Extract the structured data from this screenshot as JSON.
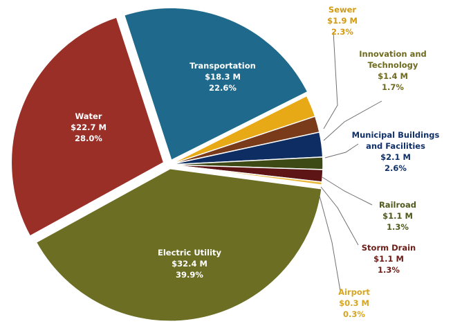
{
  "chart_data": {
    "type": "pie",
    "slices": [
      {
        "name": "Transportation",
        "value_label": "$18.3 M",
        "value": 18.3,
        "pct_label": "22.6%",
        "pct": 22.6,
        "color": "#1f6a8c",
        "label_color": "#ffffff"
      },
      {
        "name": "Sewer",
        "value_label": "$1.9 M",
        "value": 1.9,
        "pct_label": "2.3%",
        "pct": 2.3,
        "color": "#e8a916",
        "label_color": "#d39a10"
      },
      {
        "name": "Innovation and Technology",
        "value_label": "$1.4 M",
        "value": 1.4,
        "pct_label": "1.7%",
        "pct": 1.7,
        "color": "#7a3b1a",
        "label_color": "#6e6a1e"
      },
      {
        "name": "Municipal Buildings and Facilities",
        "value_label": "$2.1 M",
        "value": 2.1,
        "pct_label": "2.6%",
        "pct": 2.6,
        "color": "#0e2e63",
        "label_color": "#10306a"
      },
      {
        "name": "Railroad",
        "value_label": "$1.1 M",
        "value": 1.1,
        "pct_label": "1.3%",
        "pct": 1.3,
        "color": "#3d4a16",
        "label_color": "#4d5a1c"
      },
      {
        "name": "Storm Drain",
        "value_label": "$1.1 M",
        "value": 1.1,
        "pct_label": "1.3%",
        "pct": 1.3,
        "color": "#5e1515",
        "label_color": "#6b1d18"
      },
      {
        "name": "Airport",
        "value_label": "$0.3 M",
        "value": 0.3,
        "pct_label": "0.3%",
        "pct": 0.3,
        "color": "#e8b83a",
        "label_color": "#d8a521"
      },
      {
        "name": "Electric Utility",
        "value_label": "$32.4 M",
        "value": 32.4,
        "pct_label": "39.9%",
        "pct": 39.9,
        "color": "#6b6e23",
        "label_color": "#ffffff"
      },
      {
        "name": "Water",
        "value_label": "$22.7 M",
        "value": 22.7,
        "pct_label": "28.0%",
        "pct": 28.0,
        "color": "#9a2f28",
        "label_color": "#ffffff"
      }
    ]
  }
}
